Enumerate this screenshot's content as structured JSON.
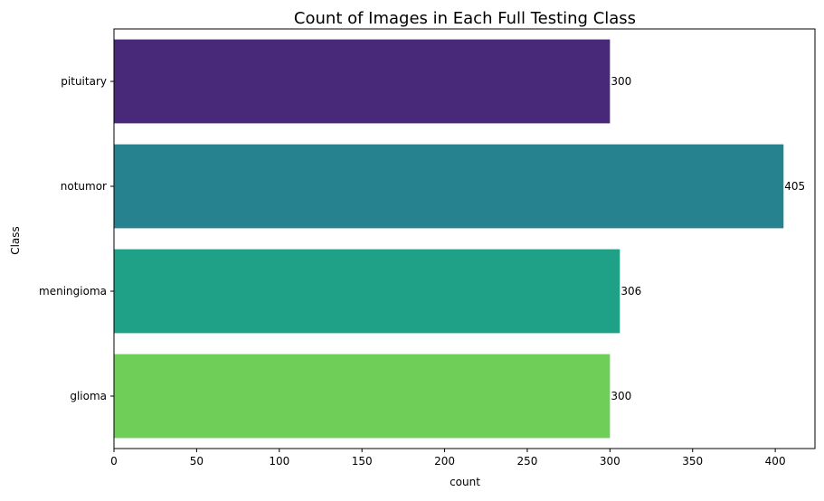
{
  "chart_data": {
    "type": "bar",
    "orientation": "horizontal",
    "title": "Count of Images in Each Full Testing Class",
    "xlabel": "count",
    "ylabel": "Class",
    "categories": [
      "pituitary",
      "notumor",
      "meningioma",
      "glioma"
    ],
    "values": [
      300,
      405,
      306,
      300
    ],
    "colors": [
      "#482878",
      "#26828e",
      "#1fa187",
      "#6ece58"
    ],
    "xlim": [
      0,
      424
    ],
    "xticks": [
      0,
      50,
      100,
      150,
      200,
      250,
      300,
      350,
      400
    ],
    "grid": false,
    "legend": false,
    "data_labels": [
      "300",
      "405",
      "306",
      "300"
    ]
  }
}
